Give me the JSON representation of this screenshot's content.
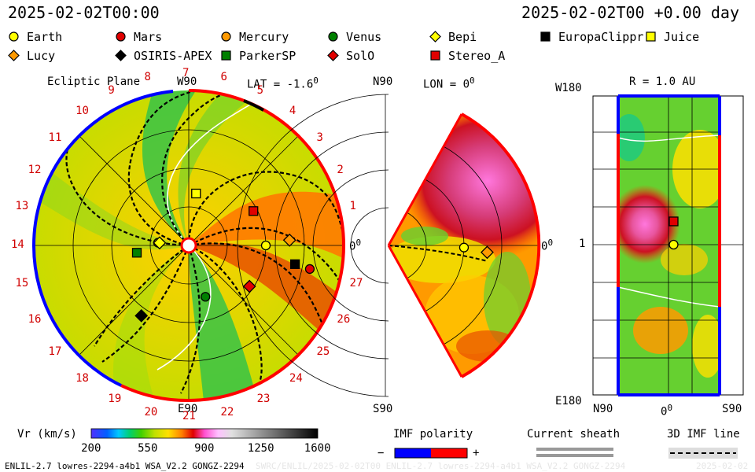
{
  "header": {
    "timestamp_left": "2025-02-02T00:00",
    "timestamp_right": "2025-02-02T00 +0.00 day"
  },
  "legend_items": [
    {
      "label": "Earth",
      "shape": "circle",
      "color": "#ffff00"
    },
    {
      "label": "Mars",
      "shape": "circle",
      "color": "#e00000"
    },
    {
      "label": "Mercury",
      "shape": "circle",
      "color": "#ff9a00"
    },
    {
      "label": "Venus",
      "shape": "circle",
      "color": "#008000"
    },
    {
      "label": "Bepi",
      "shape": "diamond",
      "color": "#ffff00"
    },
    {
      "label": "EuropaClippr",
      "shape": "square",
      "color": "#000000"
    },
    {
      "label": "Juice",
      "shape": "square",
      "color": "#ffff00"
    },
    {
      "label": "Lucy",
      "shape": "diamond",
      "color": "#ff9a00"
    },
    {
      "label": "OSIRIS-APEX",
      "shape": "diamond",
      "color": "#000000"
    },
    {
      "label": "ParkerSP",
      "shape": "square",
      "color": "#008000"
    },
    {
      "label": "SolO",
      "shape": "diamond",
      "color": "#e00000"
    },
    {
      "label": "Stereo_A",
      "shape": "square",
      "color": "#e00000"
    }
  ],
  "panels": {
    "ecliptic": {
      "title": "Ecliptic Plane",
      "top_label": "W90",
      "lat_label": "LAT = -1.6",
      "lat_deg": "0",
      "right_label": "0",
      "right_deg": "0",
      "bottom_label": "E90",
      "carrington_rotations": [
        "1",
        "2",
        "3",
        "4",
        "5",
        "6",
        "7",
        "8",
        "9",
        "10",
        "11",
        "12",
        "13",
        "14",
        "15",
        "16",
        "17",
        "18",
        "19",
        "20",
        "21",
        "22",
        "23",
        "24",
        "25",
        "26",
        "27"
      ]
    },
    "meridional": {
      "top_label": "N90",
      "lon_label": "LON = 0",
      "lon_deg": "0",
      "right_label": "0",
      "right_deg": "0",
      "bottom_label": "S90"
    },
    "radial_map": {
      "r_label": "R = 1.0 AU",
      "top_left_label": "W180",
      "mid_left_label": "1",
      "bottom_left_label": "E180",
      "x_left": "N90",
      "x_mid": "0",
      "x_mid_deg": "0",
      "x_right": "S90"
    }
  },
  "colorbar": {
    "label": "Vr (km/s)",
    "ticks": [
      "200",
      "550",
      "900",
      "1250",
      "1600"
    ],
    "min": 200,
    "max": 1600
  },
  "imf_polarity": {
    "title": "IMF polarity",
    "minus": "−",
    "plus": "+",
    "neg_color": "#0000ff",
    "pos_color": "#ff0000"
  },
  "current_sheath": {
    "title": "Current sheath"
  },
  "imf_line": {
    "title": "3D IMF line"
  },
  "footer": {
    "model": "ENLIL-2.7 lowres-2294-a4b1 WSA_V2.2 GONGZ-2294",
    "run": "SWRC/ENLIL/2025-02-02T00 ENLIL-2.7 lowres-2294-a4b1 WSA_V2.2 GONGZ-2294",
    "date": "2025-02-02"
  },
  "chart_data": [
    {
      "type": "heatmap",
      "title": "Ecliptic Plane",
      "variable": "Vr (km/s)",
      "range": [
        200,
        1600
      ],
      "objects": [
        {
          "name": "Earth",
          "angle_deg": 0,
          "r_au": 1.0
        },
        {
          "name": "Mars",
          "angle_deg": -11,
          "r_au": 1.6
        },
        {
          "name": "Mercury",
          "angle_deg": 175,
          "r_au": 0.4
        },
        {
          "name": "Venus",
          "angle_deg": -72,
          "r_au": 0.7
        },
        {
          "name": "Bepi",
          "angle_deg": 175,
          "r_au": 0.38
        },
        {
          "name": "EuropaClippr",
          "angle_deg": -10,
          "r_au": 1.4
        },
        {
          "name": "Juice",
          "angle_deg": 82,
          "r_au": 0.68
        },
        {
          "name": "Lucy",
          "angle_deg": 3,
          "r_au": 1.31
        },
        {
          "name": "OSIRIS-APEX",
          "angle_deg": -124,
          "r_au": 1.1
        },
        {
          "name": "ParkerSP",
          "angle_deg": -172,
          "r_au": 0.68
        },
        {
          "name": "SolO",
          "angle_deg": -34,
          "r_au": 0.95
        },
        {
          "name": "Stereo_A",
          "angle_deg": 28,
          "r_au": 0.95
        }
      ]
    },
    {
      "type": "heatmap",
      "title": "LON = 0",
      "variable": "Vr (km/s)",
      "objects": [
        {
          "name": "Earth",
          "lat_deg": -1.6,
          "r_au": 1.0
        },
        {
          "name": "Lucy",
          "lat_deg": -4,
          "r_au": 1.31
        }
      ]
    },
    {
      "type": "heatmap",
      "title": "R = 1.0 AU",
      "variable": "Vr (km/s)",
      "objects": [
        {
          "name": "Earth",
          "lat_deg": 0,
          "lon_deg": 0
        },
        {
          "name": "Stereo_A",
          "lat_deg": 0,
          "lon_deg": 28
        }
      ]
    }
  ]
}
